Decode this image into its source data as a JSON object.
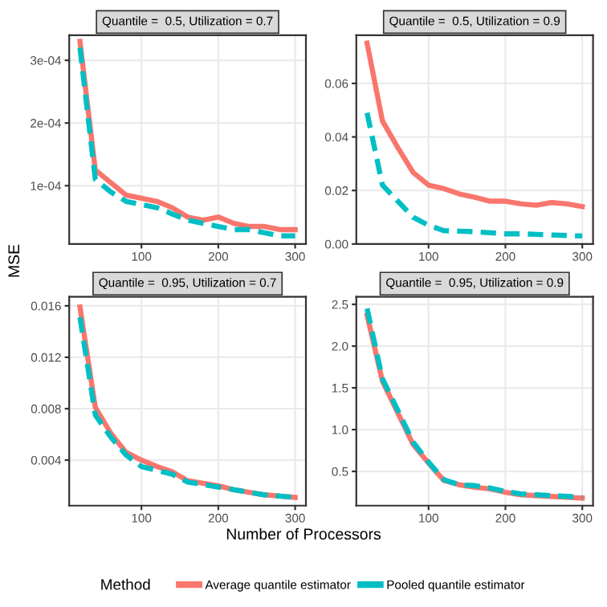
{
  "chart_data": [
    {
      "type": "line",
      "title": "Quantile =  0.5, Utilization = 0.7",
      "xlabel": "Number of Processors",
      "ylabel": "MSE",
      "legend_title": "Method",
      "legend": "bottom",
      "grid": true,
      "x": [
        20,
        40,
        60,
        80,
        100,
        120,
        140,
        160,
        180,
        200,
        220,
        240,
        260,
        280,
        300
      ],
      "xlim": [
        6,
        314
      ],
      "xticks": [
        100,
        200,
        300
      ],
      "ylim": [
        7e-06,
        0.00034
      ],
      "yticks": [
        {
          "value": 0.0001,
          "label": "1e-04"
        },
        {
          "value": 0.0002,
          "label": "2e-04"
        },
        {
          "value": 0.0003,
          "label": "3e-04"
        }
      ],
      "series": [
        {
          "name": "Average quantile estimator",
          "color": "#f8766d",
          "line_style": "solid",
          "values": [
            0.00033,
            0.000125,
            0.000105,
            8.5e-05,
            8e-05,
            7.5e-05,
            6.5e-05,
            5e-05,
            4.5e-05,
            5e-05,
            4e-05,
            3.5e-05,
            3.5e-05,
            3e-05,
            3e-05
          ]
        },
        {
          "name": "Pooled quantile estimator",
          "color": "#00bfc4",
          "line_style": "dashed",
          "values": [
            0.00032,
            0.00011,
            9e-05,
            7.5e-05,
            7e-05,
            6.5e-05,
            5.5e-05,
            4.5e-05,
            4e-05,
            3.5e-05,
            3e-05,
            3e-05,
            2.5e-05,
            2e-05,
            2e-05
          ]
        }
      ]
    },
    {
      "type": "line",
      "title": "Quantile =  0.5, Utilization = 0.9",
      "grid": true,
      "x": [
        20,
        40,
        60,
        80,
        100,
        120,
        140,
        160,
        180,
        200,
        220,
        240,
        260,
        280,
        300
      ],
      "xlim": [
        6,
        314
      ],
      "xticks": [
        100,
        200,
        300
      ],
      "ylim": [
        0,
        0.078
      ],
      "yticks": [
        {
          "value": 0,
          "label": "0.00"
        },
        {
          "value": 0.02,
          "label": "0.02"
        },
        {
          "value": 0.04,
          "label": "0.04"
        },
        {
          "value": 0.06,
          "label": "0.06"
        }
      ],
      "series": [
        {
          "color": "#f8766d",
          "line_style": "solid",
          "values": [
            0.075,
            0.046,
            0.036,
            0.0267,
            0.022,
            0.0207,
            0.0187,
            0.0175,
            0.016,
            0.016,
            0.015,
            0.0145,
            0.0155,
            0.015,
            0.014
          ]
        },
        {
          "color": "#00bfc4",
          "line_style": "dashed",
          "values": [
            0.049,
            0.022,
            0.016,
            0.01,
            0.007,
            0.005,
            0.0048,
            0.0046,
            0.0042,
            0.0038,
            0.0038,
            0.0036,
            0.0034,
            0.0032,
            0.003
          ]
        }
      ]
    },
    {
      "type": "line",
      "title": "Quantile =  0.95, Utilization = 0.7",
      "grid": true,
      "x": [
        20,
        40,
        60,
        80,
        100,
        120,
        140,
        160,
        180,
        200,
        220,
        240,
        260,
        280,
        300
      ],
      "xlim": [
        6,
        314
      ],
      "xticks": [
        100,
        200,
        300
      ],
      "ylim": [
        0.00046,
        0.0167
      ],
      "yticks": [
        {
          "value": 0.004,
          "label": "0.004"
        },
        {
          "value": 0.008,
          "label": "0.008"
        },
        {
          "value": 0.012,
          "label": "0.012"
        },
        {
          "value": 0.016,
          "label": "0.016"
        }
      ],
      "series": [
        {
          "color": "#f8766d",
          "line_style": "solid",
          "values": [
            0.0159,
            0.0081,
            0.0061,
            0.0046,
            0.004,
            0.0035,
            0.0031,
            0.0024,
            0.0022,
            0.002,
            0.0017,
            0.0015,
            0.0013,
            0.0012,
            0.0011
          ]
        },
        {
          "color": "#00bfc4",
          "line_style": "dashed",
          "values": [
            0.0151,
            0.0075,
            0.0058,
            0.0044,
            0.0035,
            0.0032,
            0.0029,
            0.0023,
            0.0021,
            0.0019,
            0.0017,
            0.0015,
            0.0013,
            0.0012,
            0.0011
          ]
        }
      ]
    },
    {
      "type": "line",
      "title": "Quantile =  0.95, Utilization = 0.9",
      "grid": true,
      "x": [
        20,
        40,
        60,
        80,
        100,
        120,
        140,
        160,
        180,
        200,
        220,
        240,
        260,
        280,
        300
      ],
      "xlim": [
        6,
        314
      ],
      "xticks": [
        100,
        200,
        300
      ],
      "ylim": [
        0.09,
        2.59
      ],
      "yticks": [
        0.5,
        {
          "value": 1,
          "label": "1.0"
        },
        1.5,
        {
          "value": 2,
          "label": "2.0"
        },
        2.5
      ],
      "series": [
        {
          "color": "#f8766d",
          "line_style": "solid",
          "values": [
            2.37,
            1.58,
            1.2,
            0.82,
            0.6,
            0.39,
            0.34,
            0.31,
            0.29,
            0.25,
            0.22,
            0.21,
            0.2,
            0.19,
            0.18
          ]
        },
        {
          "color": "#00bfc4",
          "line_style": "dashed",
          "values": [
            2.45,
            1.61,
            1.23,
            0.85,
            0.61,
            0.4,
            0.34,
            0.33,
            0.3,
            0.26,
            0.23,
            0.22,
            0.21,
            0.2,
            0.19
          ]
        }
      ]
    }
  ]
}
